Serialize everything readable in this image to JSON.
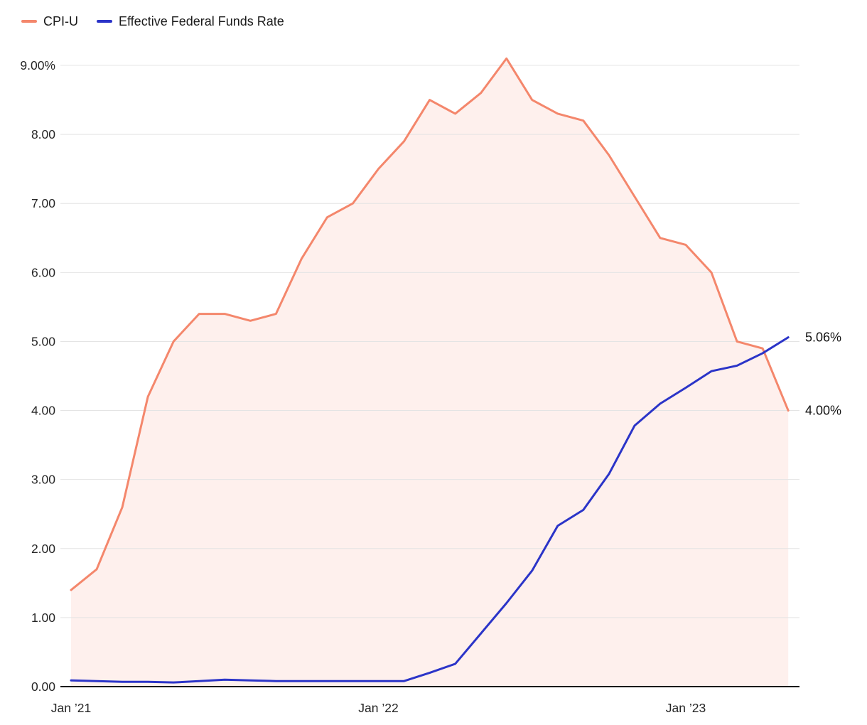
{
  "legend": {
    "items": [
      {
        "label": "CPI-U",
        "color": "#F4876C"
      },
      {
        "label": "Effective Federal Funds Rate",
        "color": "#2B34C8"
      }
    ]
  },
  "colors": {
    "cpi": "#F4876C",
    "effr": "#2B34C8",
    "grid": "#E4E4E4",
    "axis": "#161616",
    "text": "#262626",
    "background": "#FFFFFF"
  },
  "chart_data": {
    "type": "line",
    "title": "",
    "x": [
      "Jan 2021",
      "Feb 2021",
      "Mar 2021",
      "Apr 2021",
      "May 2021",
      "Jun 2021",
      "Jul 2021",
      "Aug 2021",
      "Sep 2021",
      "Oct 2021",
      "Nov 2021",
      "Dec 2021",
      "Jan 2022",
      "Feb 2022",
      "Mar 2022",
      "Apr 2022",
      "May 2022",
      "Jun 2022",
      "Jul 2022",
      "Aug 2022",
      "Sep 2022",
      "Oct 2022",
      "Nov 2022",
      "Dec 2022",
      "Jan 2023",
      "Feb 2023",
      "Mar 2023",
      "Apr 2023",
      "May 2023"
    ],
    "series": [
      {
        "name": "CPI-U",
        "color": "#F4876C",
        "fill": true,
        "fill_opacity": 0.12,
        "end_label": "4.00%",
        "values": [
          1.4,
          1.7,
          2.6,
          4.2,
          5.0,
          5.4,
          5.4,
          5.3,
          5.4,
          6.2,
          6.8,
          7.0,
          7.5,
          7.9,
          8.5,
          8.3,
          8.6,
          9.1,
          8.5,
          8.3,
          8.2,
          7.7,
          7.1,
          6.5,
          6.4,
          6.0,
          5.0,
          4.9,
          4.0
        ]
      },
      {
        "name": "Effective Federal Funds Rate",
        "color": "#2B34C8",
        "fill": false,
        "end_label": "5.06%",
        "values": [
          0.09,
          0.08,
          0.07,
          0.07,
          0.06,
          0.08,
          0.1,
          0.09,
          0.08,
          0.08,
          0.08,
          0.08,
          0.08,
          0.08,
          0.2,
          0.33,
          0.77,
          1.21,
          1.68,
          2.33,
          2.56,
          3.08,
          3.78,
          4.1,
          4.33,
          4.57,
          4.65,
          4.83,
          5.06
        ]
      }
    ],
    "y_ticks": [
      {
        "value": 0,
        "label": "0.00"
      },
      {
        "value": 1,
        "label": "1.00"
      },
      {
        "value": 2,
        "label": "2.00"
      },
      {
        "value": 3,
        "label": "3.00"
      },
      {
        "value": 4,
        "label": "4.00"
      },
      {
        "value": 5,
        "label": "5.00"
      },
      {
        "value": 6,
        "label": "6.00"
      },
      {
        "value": 7,
        "label": "7.00"
      },
      {
        "value": 8,
        "label": "8.00"
      },
      {
        "value": 9,
        "label": "9.00%"
      }
    ],
    "x_ticks": [
      {
        "index": 0,
        "label": "Jan ’21"
      },
      {
        "index": 12,
        "label": "Jan ’22"
      },
      {
        "index": 24,
        "label": "Jan ’23"
      }
    ],
    "ylim": [
      0,
      9.35
    ],
    "xlabel": "",
    "ylabel": "",
    "grid": true,
    "legend_position": "top-left"
  }
}
